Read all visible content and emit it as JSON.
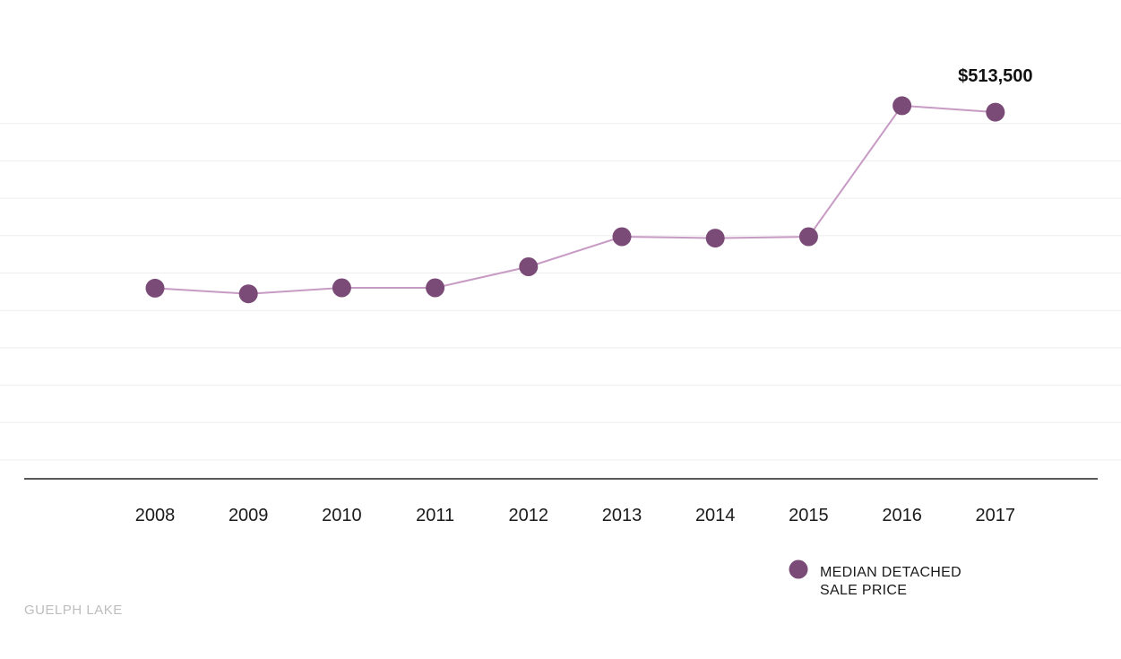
{
  "chart_data": {
    "type": "line",
    "title": "",
    "xlabel": "",
    "ylabel": "",
    "x": [
      "2008",
      "2009",
      "2010",
      "2011",
      "2012",
      "2013",
      "2014",
      "2015",
      "2016",
      "2017"
    ],
    "series": [
      {
        "name": "MEDIAN DETACHED SALE PRICE",
        "values": [
          267000,
          259000,
          267500,
          267500,
          297000,
          339000,
          337000,
          339000,
          522500,
          513500
        ],
        "color": "#7b4b78",
        "line_color": "#c79bc4"
      }
    ],
    "ylim": [
      0,
      550000
    ],
    "grid": true,
    "legend": {
      "placement": "bottom-right",
      "lines": [
        "MEDIAN DETACHED",
        "SALE PRICE"
      ]
    },
    "annotations": [
      {
        "x": "2017",
        "text": "$513,500"
      }
    ]
  },
  "footer": {
    "label": "GUELPH LAKE"
  },
  "colors": {
    "marker": "#7b4b78",
    "line": "#c79bc4",
    "grid": "#eeeeee",
    "axis": "#222222",
    "footer": "#bdbdbd"
  }
}
